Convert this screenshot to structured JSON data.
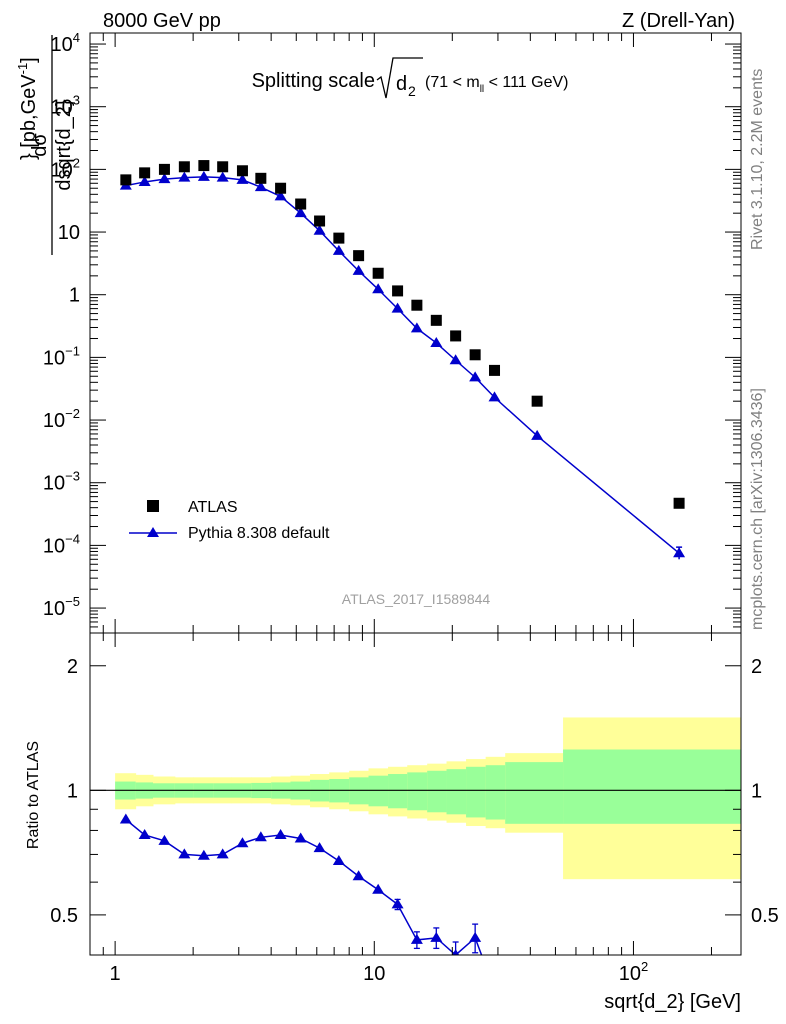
{
  "header": {
    "left": "8000 GeV pp",
    "right": "Z (Drell-Yan)"
  },
  "side_labels": {
    "rivet": "Rivet 3.1.10,  2.2M events",
    "mcplots": "mcplots.cern.ch [arXiv:1306.3436]"
  },
  "colors": {
    "mc": "#0000cc",
    "data": "#000000",
    "band_inner": "#99ff99",
    "band_outer": "#ffff99"
  },
  "chart_data": [
    {
      "type": "scatter",
      "panel": "main",
      "title_main": "Splitting scale",
      "title_sub": "(71 < m",
      "title_sub_index": "ll",
      "title_sub_tail": " < 111 GeV)",
      "ylabel": "dσ/dsqrt{d_2} [pb,GeV⁻¹]",
      "xscale": "log",
      "yscale": "log",
      "xlim": [
        0.8,
        260
      ],
      "ylim": [
        4e-06,
        15000
      ],
      "watermark": "ATLAS_2017_I1589844",
      "legend_position": "lower-left",
      "series": [
        {
          "name": "ATLAS",
          "marker": "square",
          "x": [
            1.1,
            1.3,
            1.55,
            1.85,
            2.2,
            2.6,
            3.1,
            3.65,
            4.35,
            5.2,
            6.15,
            7.3,
            8.7,
            10.35,
            12.3,
            14.6,
            17.35,
            20.6,
            24.5,
            29.1,
            42.5,
            150
          ],
          "y": [
            68,
            88,
            100,
            110,
            115,
            110,
            95,
            72,
            50,
            28,
            15,
            8,
            4.2,
            2.2,
            1.15,
            0.68,
            0.39,
            0.22,
            0.11,
            0.062,
            0.02,
            0.00047
          ]
        },
        {
          "name": "Pythia 8.308 default",
          "marker": "triangle",
          "x": [
            1.1,
            1.3,
            1.55,
            1.85,
            2.2,
            2.6,
            3.1,
            3.65,
            4.35,
            5.2,
            6.15,
            7.3,
            8.7,
            10.35,
            12.3,
            14.6,
            17.35,
            20.6,
            24.5,
            29.1,
            42.5,
            150
          ],
          "y": [
            55,
            63,
            70,
            74,
            76,
            74,
            68,
            52,
            37,
            20,
            10.5,
            5,
            2.4,
            1.22,
            0.6,
            0.29,
            0.17,
            0.09,
            0.048,
            0.023,
            0.0056,
            7.5e-05
          ]
        }
      ],
      "legend": [
        "ATLAS",
        "Pythia 8.308 default"
      ]
    },
    {
      "type": "line",
      "panel": "ratio",
      "ylabel": "Ratio to ATLAS",
      "xlabel": "sqrt{d_2} [GeV]",
      "xscale": "log",
      "yscale": "log",
      "xlim": [
        0.8,
        260
      ],
      "ylim": [
        0.4,
        2.4
      ],
      "reference": 1,
      "bands": {
        "edges": [
          1,
          1.2,
          1.4,
          1.7,
          2.0,
          2.4,
          2.8,
          3.35,
          4.0,
          4.75,
          5.65,
          6.7,
          8.0,
          9.5,
          11.3,
          13.4,
          16.0,
          19.0,
          22.6,
          26.9,
          32.0,
          53.5,
          260
        ],
        "inner_lo": [
          0.95,
          0.955,
          0.96,
          0.96,
          0.96,
          0.96,
          0.96,
          0.958,
          0.955,
          0.95,
          0.94,
          0.935,
          0.925,
          0.915,
          0.905,
          0.895,
          0.885,
          0.875,
          0.86,
          0.85,
          0.83,
          0.83
        ],
        "inner_hi": [
          1.05,
          1.045,
          1.04,
          1.04,
          1.04,
          1.04,
          1.04,
          1.042,
          1.045,
          1.05,
          1.06,
          1.065,
          1.075,
          1.085,
          1.095,
          1.105,
          1.115,
          1.125,
          1.14,
          1.15,
          1.17,
          1.255
        ],
        "outer_lo": [
          0.9,
          0.915,
          0.925,
          0.93,
          0.93,
          0.93,
          0.93,
          0.93,
          0.925,
          0.92,
          0.91,
          0.9,
          0.89,
          0.875,
          0.865,
          0.855,
          0.845,
          0.835,
          0.82,
          0.81,
          0.79,
          0.61
        ],
        "outer_hi": [
          1.1,
          1.09,
          1.08,
          1.075,
          1.075,
          1.075,
          1.075,
          1.075,
          1.08,
          1.085,
          1.095,
          1.105,
          1.115,
          1.13,
          1.14,
          1.15,
          1.16,
          1.175,
          1.19,
          1.205,
          1.23,
          1.5
        ]
      },
      "series": [
        {
          "name": "Pythia 8.308 default",
          "x": [
            1.1,
            1.3,
            1.55,
            1.85,
            2.2,
            2.6,
            3.1,
            3.65,
            4.35,
            5.2,
            6.15,
            7.3,
            8.7,
            10.35,
            12.3,
            14.6,
            17.35,
            20.6,
            24.5,
            29.1
          ],
          "y": [
            0.85,
            0.78,
            0.755,
            0.7,
            0.695,
            0.7,
            0.745,
            0.77,
            0.78,
            0.765,
            0.725,
            0.675,
            0.62,
            0.575,
            0.53,
            0.435,
            0.44,
            0.4,
            0.44,
            0.33
          ],
          "err": [
            0,
            0,
            0,
            0,
            0,
            0,
            0,
            0,
            0,
            0,
            0,
            0,
            0,
            0,
            0.015,
            0.02,
            0.025,
            0.03,
            0.035,
            0.04
          ]
        }
      ]
    }
  ]
}
